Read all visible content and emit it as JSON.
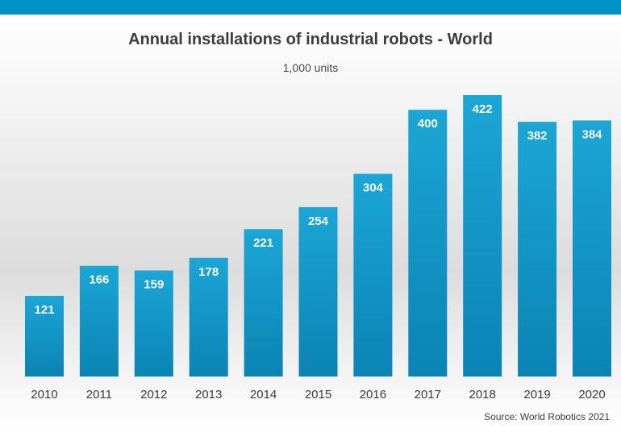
{
  "title": "Annual installations of industrial robots - World",
  "subtitle": "1,000 units",
  "source": "Source: World Robotics 2021",
  "colors": {
    "bar_top": "#1ba6d6",
    "bar_bottom": "#0a84b4",
    "accent": "#0091c8",
    "label": "#ffffff",
    "tick": "#3c3c3c"
  },
  "chart_data": {
    "type": "bar",
    "title": "Annual installations of industrial robots - World",
    "subtitle": "1,000 units",
    "categories": [
      "2010",
      "2011",
      "2012",
      "2013",
      "2014",
      "2015",
      "2016",
      "2017",
      "2018",
      "2019",
      "2020"
    ],
    "values": [
      121,
      166,
      159,
      178,
      221,
      254,
      304,
      400,
      422,
      382,
      384
    ],
    "xlabel": "",
    "ylabel": "",
    "ylim": [
      0,
      450
    ],
    "grid": false,
    "legend": "none"
  }
}
